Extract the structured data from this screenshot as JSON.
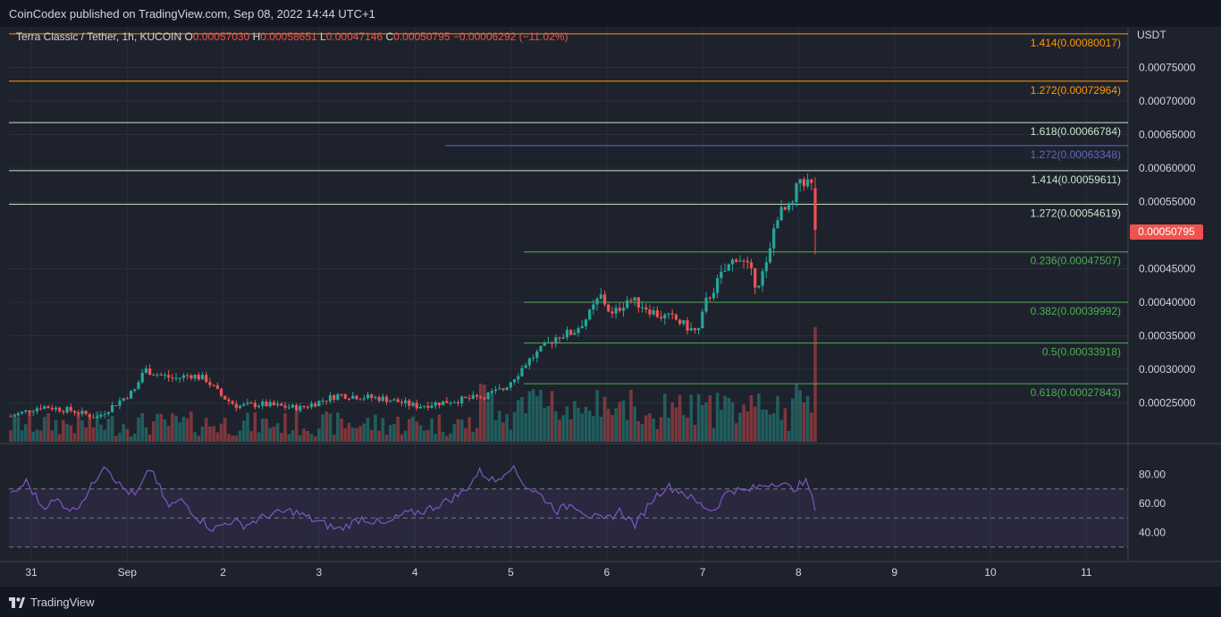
{
  "header": {
    "published": "CoinCodex published on TradingView.com, Sep 08, 2022 14:44 UTC+1"
  },
  "legend": {
    "symbol": "Terra Classic / Tether, 1h, KUCOIN",
    "open_label": "O",
    "open": "0.00057030",
    "high_label": "H",
    "high": "0.00058651",
    "low_label": "L",
    "low": "0.00047146",
    "close_label": "C",
    "close": "0.00050795",
    "change": "−0.00006292 (−11.02%)"
  },
  "price_axis": {
    "currency": "USDT",
    "last_price": "0.00050795"
  },
  "footer": {
    "brand": "TradingView"
  },
  "colors": {
    "background": "#1e222d",
    "up": "#26a69a",
    "down": "#ef5350",
    "rsi": "#7e57c2",
    "fib_orange": "#ff9800",
    "fib_light": "#c8e6c9",
    "fib_green": "#4caf50",
    "fib_purple": "#5c6bc0"
  },
  "chart_data": [
    {
      "type": "candlestick",
      "x_ticks": [
        "31",
        "Sep",
        "2",
        "3",
        "4",
        "5",
        "6",
        "7",
        "8",
        "9",
        "10",
        "11"
      ],
      "y_ticks": [
        "0.00075000",
        "0.00070000",
        "0.00065000",
        "0.00060000",
        "0.00055000",
        "0.00045000",
        "0.00040000",
        "0.00035000",
        "0.00030000",
        "0.00025000"
      ],
      "ylim": [
        0.0002,
        0.0008
      ],
      "ohlc_path": [
        [
          0.0,
          0.00023
        ],
        [
          0.04,
          0.000245
        ],
        [
          0.08,
          0.000238
        ],
        [
          0.11,
          0.000228
        ],
        [
          0.13,
          0.000245
        ],
        [
          0.16,
          0.00027
        ],
        [
          0.17,
          0.0003
        ],
        [
          0.19,
          0.000292
        ],
        [
          0.21,
          0.000286
        ],
        [
          0.23,
          0.000292
        ],
        [
          0.25,
          0.000285
        ],
        [
          0.27,
          0.00026
        ],
        [
          0.29,
          0.000245
        ],
        [
          0.32,
          0.000248
        ],
        [
          0.37,
          0.000242
        ],
        [
          0.42,
          0.000262
        ],
        [
          0.48,
          0.000256
        ],
        [
          0.52,
          0.000245
        ],
        [
          0.56,
          0.000252
        ],
        [
          0.6,
          0.000258
        ],
        [
          0.63,
          0.00027
        ],
        [
          0.65,
          0.000295
        ],
        [
          0.66,
          0.00031
        ],
        [
          0.68,
          0.00033
        ],
        [
          0.7,
          0.00035
        ],
        [
          0.72,
          0.000355
        ],
        [
          0.74,
          0.00038
        ],
        [
          0.755,
          0.00041
        ],
        [
          0.77,
          0.00038
        ],
        [
          0.79,
          0.000405
        ],
        [
          0.81,
          0.000395
        ],
        [
          0.83,
          0.00038
        ],
        [
          0.85,
          0.000375
        ],
        [
          0.87,
          0.00036
        ],
        [
          0.88,
          0.000355
        ],
        [
          0.89,
          0.0004
        ],
        [
          0.91,
          0.00044
        ],
        [
          0.93,
          0.00047
        ],
        [
          0.945,
          0.00045
        ],
        [
          0.955,
          0.000425
        ],
        [
          0.97,
          0.00046
        ],
        [
          0.98,
          0.00053
        ],
        [
          1.0,
          0.00054
        ],
        [
          1.01,
          0.000585
        ],
        [
          1.025,
          0.000575
        ],
        [
          1.03,
          0.000508
        ]
      ],
      "fib_levels": [
        {
          "label": "1.414(0.00080017)",
          "value": 0.00080017,
          "color": "#ff9800",
          "from": 0.0
        },
        {
          "label": "1.272(0.00072964)",
          "value": 0.00072964,
          "color": "#ff9800",
          "from": 0.0
        },
        {
          "label": "1.618(0.00066784)",
          "value": 0.00066784,
          "color": "#c8e6c9",
          "from": 0.0
        },
        {
          "label": "1.272(0.00063348)",
          "value": 0.00063348,
          "color": "#5c6bc0",
          "from": 0.39
        },
        {
          "label": "1.414(0.00059611)",
          "value": 0.00059611,
          "color": "#c8e6c9",
          "from": 0.0
        },
        {
          "label": "1.272(0.00054619)",
          "value": 0.00054619,
          "color": "#c8e6c9",
          "from": 0.0
        },
        {
          "label": "0.236(0.00047507)",
          "value": 0.00047507,
          "color": "#4caf50",
          "from": 0.46
        },
        {
          "label": "0.382(0.00039992)",
          "value": 0.00039992,
          "color": "#4caf50",
          "from": 0.46
        },
        {
          "label": "0.5(0.00033918)",
          "value": 0.00033918,
          "color": "#4caf50",
          "from": 0.46
        },
        {
          "label": "0.618(0.00027843)",
          "value": 0.00027843,
          "color": "#4caf50",
          "from": 0.46
        }
      ]
    },
    {
      "type": "line",
      "ylim": [
        20,
        100
      ],
      "y_ticks": [
        "80.00",
        "60.00",
        "40.00"
      ],
      "bands": [
        70,
        50,
        30
      ],
      "rsi_path": [
        [
          0.0,
          65
        ],
        [
          0.02,
          75
        ],
        [
          0.04,
          58
        ],
        [
          0.06,
          62
        ],
        [
          0.08,
          55
        ],
        [
          0.1,
          68
        ],
        [
          0.12,
          88
        ],
        [
          0.14,
          72
        ],
        [
          0.16,
          65
        ],
        [
          0.18,
          85
        ],
        [
          0.2,
          58
        ],
        [
          0.22,
          62
        ],
        [
          0.24,
          50
        ],
        [
          0.26,
          42
        ],
        [
          0.28,
          48
        ],
        [
          0.3,
          45
        ],
        [
          0.33,
          52
        ],
        [
          0.36,
          55
        ],
        [
          0.39,
          48
        ],
        [
          0.42,
          42
        ],
        [
          0.45,
          50
        ],
        [
          0.48,
          45
        ],
        [
          0.5,
          52
        ],
        [
          0.53,
          55
        ],
        [
          0.56,
          62
        ],
        [
          0.58,
          68
        ],
        [
          0.6,
          82
        ],
        [
          0.62,
          75
        ],
        [
          0.64,
          86
        ],
        [
          0.66,
          72
        ],
        [
          0.68,
          65
        ],
        [
          0.7,
          55
        ],
        [
          0.72,
          60
        ],
        [
          0.74,
          52
        ],
        [
          0.76,
          48
        ],
        [
          0.78,
          55
        ],
        [
          0.8,
          45
        ],
        [
          0.82,
          62
        ],
        [
          0.84,
          72
        ],
        [
          0.86,
          68
        ],
        [
          0.88,
          60
        ],
        [
          0.9,
          55
        ],
        [
          0.92,
          70
        ],
        [
          0.94,
          68
        ],
        [
          0.96,
          72
        ],
        [
          0.98,
          75
        ],
        [
          1.0,
          70
        ],
        [
          1.02,
          75
        ],
        [
          1.03,
          55
        ]
      ]
    }
  ]
}
